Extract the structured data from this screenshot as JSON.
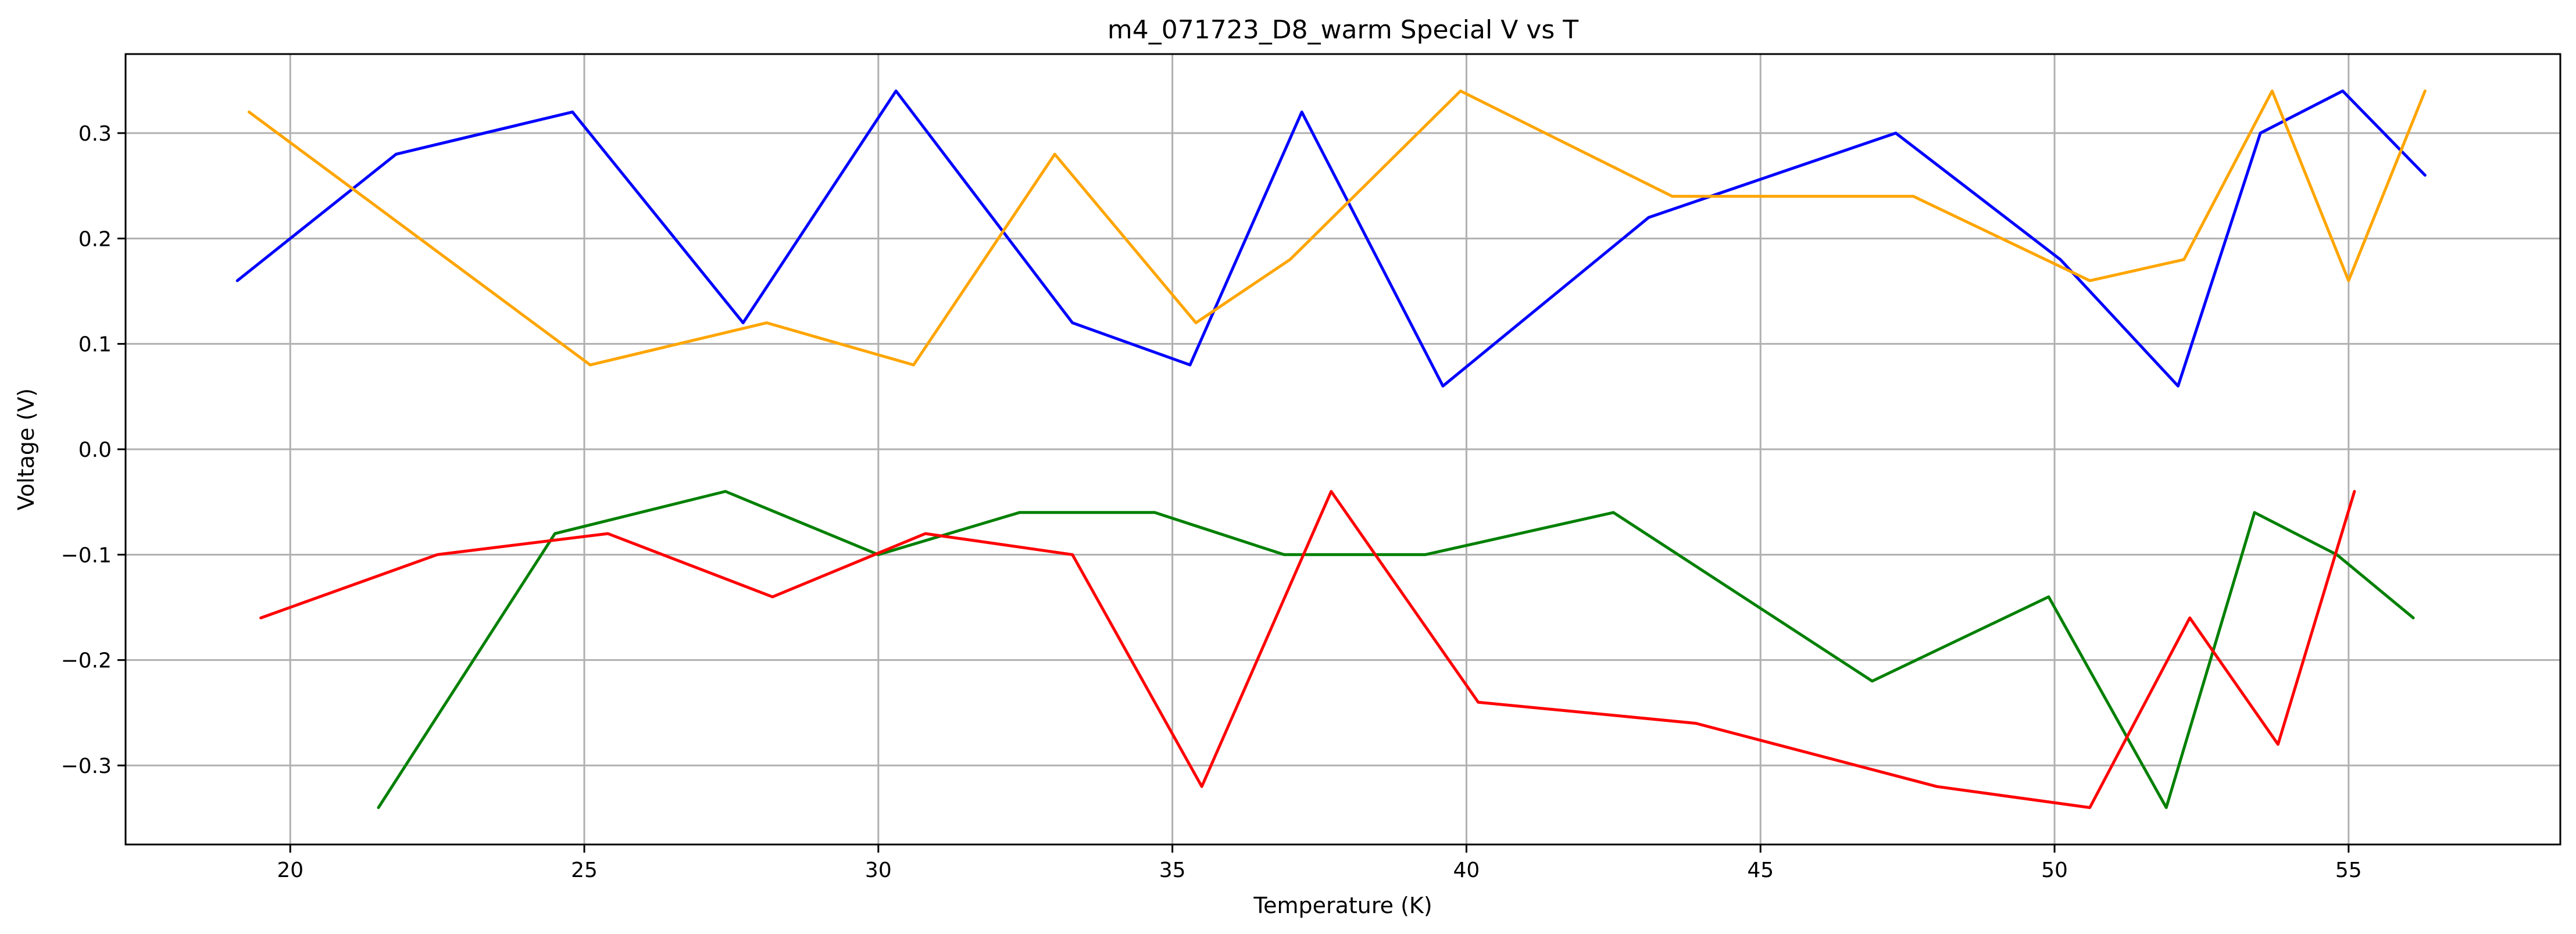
{
  "chart_data": {
    "type": "line",
    "title": "m4_071723_D8_warm Special V vs T",
    "xlabel": "Temperature (K)",
    "ylabel": "Voltage (V)",
    "xlim": [
      17.2,
      58.6
    ],
    "ylim": [
      -0.375,
      0.375
    ],
    "xticks": [
      20,
      25,
      30,
      35,
      40,
      45,
      50,
      55
    ],
    "xtick_labels": [
      "20",
      "25",
      "30",
      "35",
      "40",
      "45",
      "50",
      "55"
    ],
    "yticks": [
      -0.3,
      -0.2,
      -0.1,
      0.0,
      0.1,
      0.2,
      0.3
    ],
    "ytick_labels": [
      "−0.3",
      "−0.2",
      "−0.1",
      "0.0",
      "0.1",
      "0.2",
      "0.3"
    ],
    "grid": true,
    "legend": false,
    "series": [
      {
        "color": "#0000ff",
        "x": [
          19.1,
          21.8,
          24.8,
          27.7,
          30.3,
          33.3,
          35.3,
          37.2,
          39.6,
          43.1,
          47.3,
          50.1,
          52.1,
          53.5,
          54.9,
          56.3
        ],
        "y": [
          0.16,
          0.28,
          0.32,
          0.12,
          0.34,
          0.12,
          0.08,
          0.32,
          0.06,
          0.22,
          0.3,
          0.18,
          0.06,
          0.3,
          0.34,
          0.26
        ]
      },
      {
        "color": "#ffa500",
        "x": [
          19.3,
          25.1,
          28.1,
          30.6,
          33.0,
          35.4,
          37.0,
          39.9,
          43.5,
          47.6,
          50.6,
          52.2,
          53.7,
          55.0,
          56.3
        ],
        "y": [
          0.32,
          0.08,
          0.12,
          0.08,
          0.28,
          0.12,
          0.18,
          0.34,
          0.24,
          0.24,
          0.16,
          0.18,
          0.34,
          0.16,
          0.34
        ]
      },
      {
        "color": "#008000",
        "x": [
          21.5,
          24.5,
          27.4,
          30.0,
          32.4,
          34.7,
          36.9,
          39.3,
          42.5,
          46.9,
          49.9,
          51.9,
          53.4,
          54.8,
          56.1
        ],
        "y": [
          -0.34,
          -0.08,
          -0.04,
          -0.1,
          -0.06,
          -0.06,
          -0.1,
          -0.1,
          -0.06,
          -0.22,
          -0.14,
          -0.34,
          -0.06,
          -0.1,
          -0.16
        ]
      },
      {
        "color": "#ff0000",
        "x": [
          19.5,
          22.5,
          25.4,
          28.2,
          30.8,
          33.3,
          35.5,
          37.7,
          40.2,
          43.9,
          48.0,
          50.6,
          52.3,
          53.8,
          55.1
        ],
        "y": [
          -0.16,
          -0.1,
          -0.08,
          -0.14,
          -0.08,
          -0.1,
          -0.32,
          -0.04,
          -0.24,
          -0.26,
          -0.32,
          -0.34,
          -0.16,
          -0.28,
          -0.04
        ]
      }
    ]
  }
}
